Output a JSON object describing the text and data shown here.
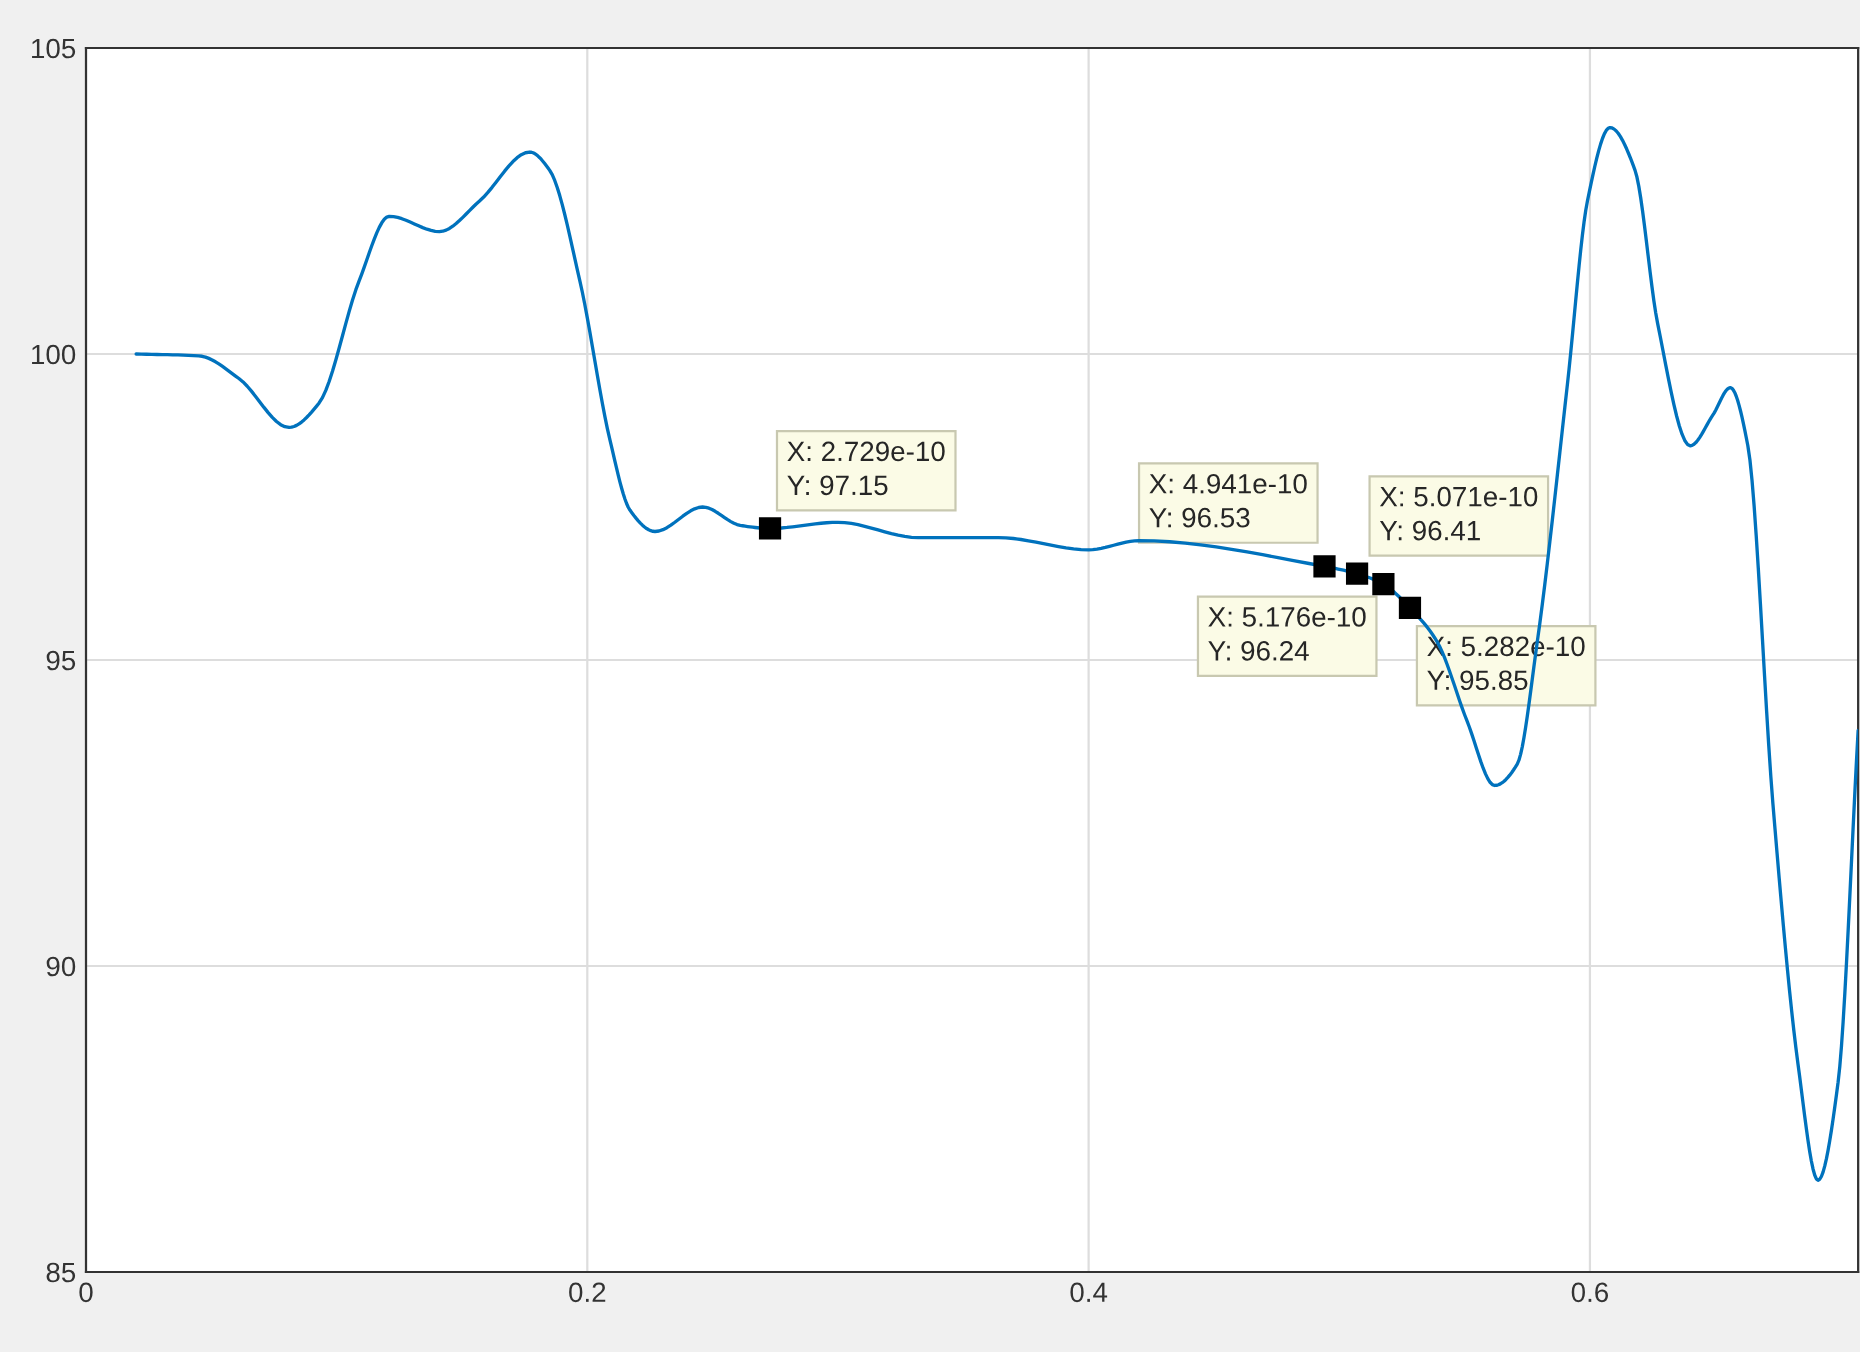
{
  "chart_data": {
    "type": "line",
    "x": [
      0.02,
      0.045,
      0.061,
      0.081,
      0.093,
      0.109,
      0.121,
      0.141,
      0.157,
      0.177,
      0.185,
      0.197,
      0.209,
      0.217,
      0.227,
      0.246,
      0.261,
      0.2729,
      0.3,
      0.332,
      0.364,
      0.4,
      0.42,
      0.4941,
      0.5071,
      0.5176,
      0.5282,
      0.539,
      0.551,
      0.562,
      0.571,
      0.579,
      0.591,
      0.599,
      0.608,
      0.618,
      0.627,
      0.64,
      0.649,
      0.656,
      0.663,
      0.673,
      0.683,
      0.691,
      0.699,
      0.707
    ],
    "series": [
      {
        "color": "#0072bd",
        "values": [
          100,
          99.97,
          99.6,
          98.8,
          99.2,
          101.2,
          102.25,
          102.0,
          102.5,
          103.3,
          103.0,
          101.2,
          98.6,
          97.45,
          97.1,
          97.5,
          97.2,
          97.15,
          97.25,
          97.0,
          97.0,
          96.8,
          96.95,
          96.53,
          96.41,
          96.24,
          95.85,
          95.3,
          94.0,
          92.95,
          93.3,
          95.3,
          99.5,
          102.5,
          103.7,
          103.0,
          100.5,
          98.5,
          99.0,
          99.45,
          98.5,
          92.65,
          88.4,
          86.5,
          88.1,
          93.85
        ]
      }
    ],
    "xlim": [
      0,
      0.707
    ],
    "xticks": [
      0,
      0.2,
      0.4,
      0.6
    ],
    "ylim": [
      85,
      105
    ],
    "yticks": [
      85,
      90,
      95,
      100,
      105
    ],
    "grid": true,
    "line_style": "solid",
    "marker": "none",
    "annotations": [
      {
        "text": "X: 2.729e-10\nY: 97.15",
        "x": 0.2729,
        "y": 97.15
      },
      {
        "text": "X: 4.941e-10\nY: 96.53",
        "x": 0.4941,
        "y": 96.53
      },
      {
        "text": "X: 5.071e-10\nY: 96.41",
        "x": 0.5071,
        "y": 96.41
      },
      {
        "text": "X: 5.176e-10\nY: 96.24",
        "x": 0.5176,
        "y": 96.24
      },
      {
        "text": "X: 5.282e-10\nY: 95.85",
        "x": 0.5282,
        "y": 95.85
      }
    ]
  }
}
